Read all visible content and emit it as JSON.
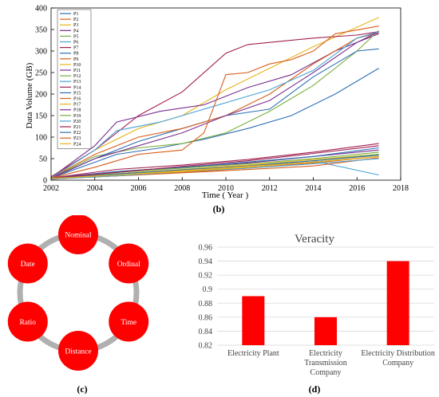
{
  "chart_data": [
    {
      "type": "line",
      "panel_caption": "(b)",
      "xlabel": "Time ( Year )",
      "ylabel": "Data Volume (GB)",
      "xlim": [
        2002,
        2018
      ],
      "ylim": [
        0,
        400
      ],
      "xticks": [
        "2002",
        "2004",
        "2006",
        "2008",
        "2010",
        "2012",
        "2014",
        "2016",
        "2018"
      ],
      "yticks": [
        "0",
        "50",
        "100",
        "150",
        "200",
        "250",
        "300",
        "350",
        "400"
      ],
      "legend_position": "top-left",
      "series": [
        {
          "name": "P1",
          "color": "#2f6fb5",
          "x": [
            2002,
            2005,
            2007,
            2009,
            2011,
            2013,
            2015,
            2017
          ],
          "y": [
            5,
            60,
            75,
            95,
            120,
            150,
            200,
            260
          ]
        },
        {
          "name": "P2",
          "color": "#d95f1a",
          "x": [
            2002,
            2005,
            2008,
            2011,
            2014,
            2017
          ],
          "y": [
            3,
            10,
            18,
            28,
            40,
            55
          ]
        },
        {
          "name": "P3",
          "color": "#e8b41c",
          "x": [
            2002,
            2004,
            2006,
            2008,
            2010,
            2012,
            2014,
            2017
          ],
          "y": [
            5,
            70,
            120,
            150,
            210,
            260,
            310,
            378
          ]
        },
        {
          "name": "P4",
          "color": "#7a2f8f",
          "x": [
            2002,
            2004,
            2005,
            2007,
            2009,
            2011,
            2013,
            2015,
            2017
          ],
          "y": [
            6,
            80,
            135,
            160,
            175,
            215,
            245,
            300,
            340
          ]
        },
        {
          "name": "P5",
          "color": "#79ad3a",
          "x": [
            2002,
            2004,
            2006,
            2008,
            2010,
            2012,
            2014,
            2016,
            2017
          ],
          "y": [
            5,
            55,
            75,
            85,
            110,
            160,
            220,
            300,
            348
          ]
        },
        {
          "name": "P6",
          "color": "#4aa3d8",
          "x": [
            2002,
            2005,
            2008,
            2011,
            2014,
            2017
          ],
          "y": [
            4,
            15,
            25,
            35,
            45,
            12
          ]
        },
        {
          "name": "P7",
          "color": "#a12050",
          "x": [
            2002,
            2004,
            2006,
            2008,
            2010,
            2011,
            2012,
            2014,
            2016,
            2017
          ],
          "y": [
            8,
            70,
            150,
            205,
            295,
            315,
            320,
            330,
            337,
            345
          ]
        },
        {
          "name": "P8",
          "color": "#2f6fb5",
          "x": [
            2002,
            2004,
            2006,
            2008,
            2010,
            2012,
            2014,
            2015,
            2016,
            2017
          ],
          "y": [
            4,
            50,
            90,
            120,
            150,
            165,
            240,
            270,
            300,
            305
          ]
        },
        {
          "name": "P9",
          "color": "#d95f1a",
          "x": [
            2002,
            2006,
            2010,
            2014,
            2017
          ],
          "y": [
            3,
            12,
            22,
            33,
            52
          ]
        },
        {
          "name": "P10",
          "color": "#e8b41c",
          "x": [
            2002,
            2005,
            2008,
            2011,
            2014,
            2017
          ],
          "y": [
            4,
            15,
            25,
            35,
            48,
            60
          ]
        },
        {
          "name": "P11",
          "color": "#7a2f8f",
          "x": [
            2002,
            2005,
            2008,
            2011,
            2014,
            2017
          ],
          "y": [
            5,
            20,
            30,
            40,
            55,
            70
          ]
        },
        {
          "name": "P12",
          "color": "#79ad3a",
          "x": [
            2002,
            2005,
            2008,
            2011,
            2014,
            2017
          ],
          "y": [
            4,
            18,
            28,
            38,
            50,
            65
          ]
        },
        {
          "name": "P13",
          "color": "#4aa3d8",
          "x": [
            2002,
            2005,
            2008,
            2011,
            2014,
            2017
          ],
          "y": [
            3,
            10,
            20,
            28,
            38,
            50
          ]
        },
        {
          "name": "P14",
          "color": "#a12050",
          "x": [
            2002,
            2005,
            2008,
            2011,
            2014,
            2017
          ],
          "y": [
            5,
            25,
            35,
            48,
            65,
            85
          ]
        },
        {
          "name": "P15",
          "color": "#2f6fb5",
          "x": [
            2002,
            2005,
            2008,
            2011,
            2014,
            2017
          ],
          "y": [
            4,
            20,
            30,
            42,
            55,
            75
          ]
        },
        {
          "name": "P16",
          "color": "#d95f1a",
          "x": [
            2002,
            2004,
            2006,
            2008,
            2010,
            2012,
            2014,
            2016,
            2017
          ],
          "y": [
            6,
            60,
            100,
            120,
            150,
            200,
            270,
            330,
            342
          ]
        },
        {
          "name": "P17",
          "color": "#e8b41c",
          "x": [
            2002,
            2005,
            2008,
            2011,
            2014,
            2017
          ],
          "y": [
            4,
            12,
            20,
            30,
            42,
            55
          ]
        },
        {
          "name": "P18",
          "color": "#7a2f8f",
          "x": [
            2002,
            2004,
            2006,
            2008,
            2010,
            2012,
            2014,
            2016,
            2017
          ],
          "y": [
            5,
            50,
            80,
            110,
            150,
            185,
            250,
            320,
            345
          ]
        },
        {
          "name": "P19",
          "color": "#79ad3a",
          "x": [
            2002,
            2005,
            2008,
            2011,
            2014,
            2017
          ],
          "y": [
            3,
            15,
            22,
            32,
            45,
            60
          ]
        },
        {
          "name": "P20",
          "color": "#4aa3d8",
          "x": [
            2002,
            2004,
            2005,
            2007,
            2010,
            2012,
            2014,
            2016,
            2017
          ],
          "y": [
            5,
            70,
            115,
            135,
            180,
            210,
            255,
            330,
            345
          ]
        },
        {
          "name": "P21",
          "color": "#a12050",
          "x": [
            2002,
            2005,
            2008,
            2011,
            2014,
            2017
          ],
          "y": [
            4,
            18,
            32,
            45,
            62,
            80
          ]
        },
        {
          "name": "P22",
          "color": "#2f6fb5",
          "x": [
            2002,
            2005,
            2008,
            2011,
            2014,
            2017
          ],
          "y": [
            3,
            14,
            24,
            33,
            45,
            58
          ]
        },
        {
          "name": "P23",
          "color": "#d95f1a",
          "x": [
            2002,
            2004,
            2006,
            2008,
            2009,
            2010,
            2011,
            2012,
            2013,
            2014,
            2015,
            2017
          ],
          "y": [
            5,
            30,
            60,
            70,
            110,
            245,
            250,
            270,
            280,
            300,
            340,
            358
          ]
        },
        {
          "name": "P24",
          "color": "#e8b41c",
          "x": [
            2002,
            2005,
            2008,
            2011,
            2014,
            2017
          ],
          "y": [
            4,
            12,
            22,
            32,
            42,
            55
          ]
        }
      ]
    },
    {
      "type": "diagram",
      "panel_caption": "(c)",
      "nodes": [
        "Nominal",
        "Ordinal",
        "Time",
        "Distance",
        "Ratio",
        "Date"
      ],
      "node_color": "#ff0000",
      "ring_color": "#b0b0b0"
    },
    {
      "type": "bar",
      "panel_caption": "(d)",
      "title": "Veracity",
      "categories": [
        [
          "Electricity Plant"
        ],
        [
          "Electricity",
          "Transmission",
          "Company"
        ],
        [
          "Electricity Distribution",
          "Company"
        ]
      ],
      "values": [
        0.89,
        0.86,
        0.94
      ],
      "ylim": [
        0.82,
        0.96
      ],
      "yticks": [
        "0.82",
        "0.84",
        "0.86",
        "0.88",
        "0.9",
        "0.92",
        "0.94",
        "0.96"
      ],
      "grid": true,
      "bar_color": "#ff0000"
    }
  ]
}
